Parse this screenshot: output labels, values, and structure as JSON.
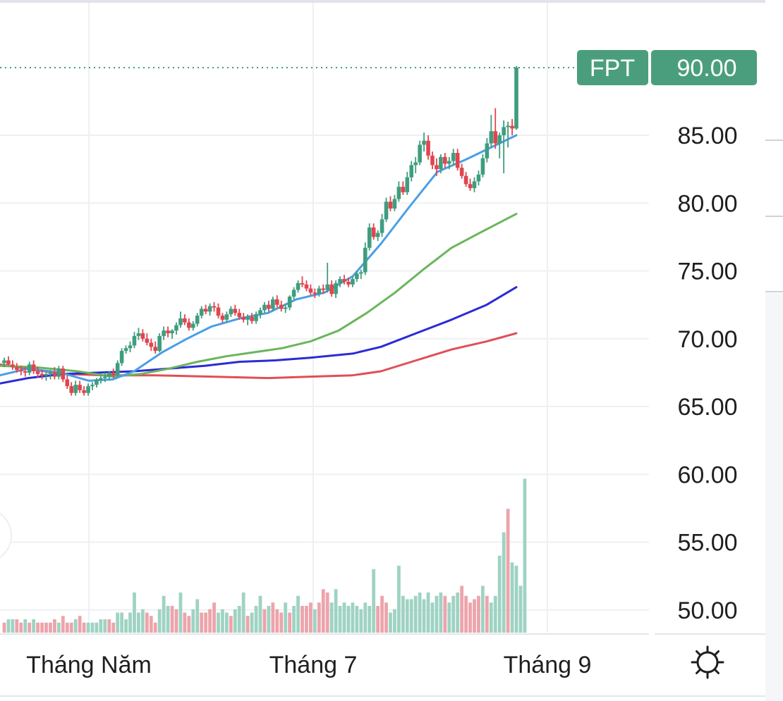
{
  "chart_data": {
    "type": "candlestick",
    "symbol": "FPT",
    "last_price": "90.00",
    "y_ticks": [
      "85.00",
      "80.00",
      "75.00",
      "70.00",
      "65.00",
      "60.00",
      "55.00",
      "50.00"
    ],
    "x_ticks": [
      "Tháng Năm",
      "Tháng 7",
      "Tháng 9"
    ],
    "ylim": [
      48.25,
      92.5
    ],
    "grid": true,
    "colors": {
      "up": "#3f9d7f",
      "down": "#e0454f",
      "volume_up": "#9fd3c3",
      "volume_down": "#eda4ab",
      "badge": "#4a9e7e",
      "ma_fast": "#4a9fe6",
      "ma_medium": "#6ab55c",
      "ma_slow": "#2b2bd6",
      "ma_long": "#e04f55"
    },
    "candles": [
      [
        68.2,
        68.6,
        67.9,
        68.4
      ],
      [
        68.4,
        68.7,
        68.0,
        68.1
      ],
      [
        68.1,
        68.4,
        67.7,
        67.9
      ],
      [
        67.9,
        68.2,
        67.5,
        67.7
      ],
      [
        67.7,
        68.0,
        67.3,
        67.6
      ],
      [
        67.6,
        67.9,
        67.2,
        67.5
      ],
      [
        67.5,
        68.3,
        67.3,
        68.1
      ],
      [
        68.1,
        68.4,
        67.4,
        67.6
      ],
      [
        67.6,
        67.9,
        67.1,
        67.4
      ],
      [
        67.4,
        67.7,
        67.0,
        67.3
      ],
      [
        67.3,
        67.6,
        66.9,
        67.4
      ],
      [
        67.4,
        67.7,
        67.0,
        67.5
      ],
      [
        67.5,
        67.9,
        67.0,
        67.2
      ],
      [
        67.2,
        68.0,
        67.0,
        67.8
      ],
      [
        67.8,
        68.0,
        66.8,
        67.0
      ],
      [
        67.0,
        67.3,
        66.3,
        66.5
      ],
      [
        66.5,
        66.8,
        65.8,
        66.0
      ],
      [
        66.0,
        66.9,
        65.8,
        66.6
      ],
      [
        66.6,
        66.9,
        66.0,
        66.2
      ],
      [
        66.2,
        66.5,
        65.8,
        66.0
      ],
      [
        66.0,
        66.7,
        65.8,
        66.5
      ],
      [
        66.5,
        66.8,
        66.2,
        66.6
      ],
      [
        66.6,
        67.1,
        66.4,
        67.0
      ],
      [
        67.0,
        67.3,
        66.7,
        67.1
      ],
      [
        67.1,
        67.5,
        66.8,
        67.2
      ],
      [
        67.2,
        67.6,
        66.9,
        67.5
      ],
      [
        67.5,
        67.8,
        67.1,
        67.3
      ],
      [
        67.3,
        68.4,
        67.2,
        68.2
      ],
      [
        68.2,
        69.3,
        68.0,
        69.1
      ],
      [
        69.1,
        69.5,
        68.9,
        69.3
      ],
      [
        69.3,
        69.8,
        69.0,
        69.5
      ],
      [
        69.5,
        70.5,
        69.3,
        70.2
      ],
      [
        70.2,
        70.8,
        69.9,
        70.4
      ],
      [
        70.4,
        70.7,
        69.8,
        70.0
      ],
      [
        70.0,
        70.4,
        69.5,
        69.7
      ],
      [
        69.7,
        70.0,
        69.1,
        69.4
      ],
      [
        69.4,
        69.8,
        68.9,
        69.1
      ],
      [
        69.1,
        70.4,
        69.0,
        70.2
      ],
      [
        70.2,
        70.9,
        69.9,
        70.6
      ],
      [
        70.6,
        70.9,
        70.1,
        70.4
      ],
      [
        70.4,
        70.7,
        70.0,
        70.6
      ],
      [
        70.6,
        71.2,
        70.3,
        71.0
      ],
      [
        71.0,
        72.0,
        70.8,
        71.5
      ],
      [
        71.5,
        71.8,
        71.0,
        71.2
      ],
      [
        71.2,
        71.5,
        70.6,
        70.8
      ],
      [
        70.8,
        71.3,
        70.6,
        71.1
      ],
      [
        71.1,
        71.9,
        70.9,
        71.7
      ],
      [
        71.7,
        72.4,
        71.5,
        72.2
      ],
      [
        72.2,
        72.5,
        71.8,
        72.0
      ],
      [
        72.0,
        72.6,
        71.7,
        72.4
      ],
      [
        72.4,
        72.7,
        72.0,
        72.3
      ],
      [
        72.3,
        72.6,
        71.5,
        71.7
      ],
      [
        71.7,
        71.9,
        71.2,
        71.4
      ],
      [
        71.4,
        72.0,
        71.2,
        71.8
      ],
      [
        71.8,
        72.4,
        71.6,
        72.2
      ],
      [
        72.2,
        72.5,
        71.7,
        71.9
      ],
      [
        71.9,
        72.2,
        71.4,
        71.6
      ],
      [
        71.6,
        71.9,
        71.2,
        71.4
      ],
      [
        71.4,
        71.8,
        71.0,
        71.6
      ],
      [
        71.6,
        71.9,
        71.1,
        71.3
      ],
      [
        71.3,
        72.0,
        71.1,
        71.8
      ],
      [
        71.8,
        72.3,
        71.5,
        72.1
      ],
      [
        72.1,
        72.7,
        71.9,
        72.5
      ],
      [
        72.5,
        72.8,
        72.0,
        72.2
      ],
      [
        72.2,
        73.1,
        72.0,
        72.9
      ],
      [
        72.9,
        73.2,
        72.3,
        72.5
      ],
      [
        72.5,
        72.8,
        72.0,
        72.2
      ],
      [
        72.2,
        72.6,
        71.9,
        72.3
      ],
      [
        72.3,
        73.2,
        72.1,
        73.1
      ],
      [
        73.1,
        73.8,
        72.9,
        73.6
      ],
      [
        73.6,
        74.3,
        73.4,
        74.1
      ],
      [
        74.1,
        74.6,
        73.8,
        74.0
      ],
      [
        74.0,
        74.3,
        73.5,
        73.7
      ],
      [
        73.7,
        74.0,
        73.2,
        73.4
      ],
      [
        73.4,
        73.7,
        73.0,
        73.3
      ],
      [
        73.3,
        73.9,
        73.1,
        73.7
      ],
      [
        73.7,
        74.0,
        73.3,
        73.6
      ],
      [
        73.6,
        75.6,
        73.4,
        74.0
      ],
      [
        74.0,
        74.3,
        73.1,
        73.3
      ],
      [
        73.3,
        74.3,
        73.0,
        74.1
      ],
      [
        74.1,
        74.6,
        73.8,
        74.4
      ],
      [
        74.4,
        74.7,
        74.0,
        74.2
      ],
      [
        74.2,
        74.5,
        73.8,
        74.0
      ],
      [
        74.0,
        74.6,
        73.8,
        74.4
      ],
      [
        74.4,
        75.0,
        74.2,
        74.8
      ],
      [
        74.8,
        75.1,
        74.4,
        74.9
      ],
      [
        74.9,
        77.1,
        74.7,
        76.7
      ],
      [
        76.7,
        78.5,
        76.5,
        78.2
      ],
      [
        78.2,
        78.5,
        77.3,
        77.5
      ],
      [
        77.5,
        78.0,
        77.2,
        77.8
      ],
      [
        77.8,
        79.2,
        77.5,
        78.8
      ],
      [
        78.8,
        80.4,
        78.6,
        80.1
      ],
      [
        80.1,
        80.5,
        79.4,
        79.6
      ],
      [
        79.6,
        80.6,
        79.4,
        80.3
      ],
      [
        80.3,
        81.6,
        80.1,
        81.2
      ],
      [
        81.2,
        81.6,
        80.6,
        80.8
      ],
      [
        80.8,
        82.3,
        80.6,
        81.9
      ],
      [
        81.9,
        83.1,
        81.6,
        82.8
      ],
      [
        82.8,
        83.4,
        82.2,
        83.0
      ],
      [
        83.0,
        84.6,
        82.8,
        84.3
      ],
      [
        84.3,
        85.2,
        83.8,
        84.6
      ],
      [
        84.6,
        85.0,
        83.2,
        83.5
      ],
      [
        83.5,
        83.8,
        82.5,
        82.8
      ],
      [
        82.8,
        83.3,
        82.0,
        82.5
      ],
      [
        82.5,
        83.6,
        82.2,
        83.4
      ],
      [
        83.4,
        83.7,
        82.6,
        82.9
      ],
      [
        82.9,
        83.4,
        82.5,
        83.1
      ],
      [
        83.1,
        84.0,
        82.8,
        83.7
      ],
      [
        83.7,
        84.0,
        82.4,
        82.6
      ],
      [
        82.6,
        82.9,
        81.8,
        82.0
      ],
      [
        82.0,
        82.3,
        81.2,
        81.4
      ],
      [
        81.4,
        81.8,
        80.9,
        81.1
      ],
      [
        81.1,
        81.9,
        80.8,
        81.6
      ],
      [
        81.6,
        82.4,
        81.3,
        82.1
      ],
      [
        82.1,
        83.6,
        81.9,
        83.3
      ],
      [
        83.3,
        84.8,
        83.0,
        84.4
      ],
      [
        84.4,
        86.5,
        84.1,
        85.3
      ],
      [
        85.3,
        87.0,
        84.0,
        84.4
      ],
      [
        84.4,
        85.2,
        83.3,
        85.0
      ],
      [
        85.0,
        86.1,
        82.2,
        85.6
      ],
      [
        85.6,
        86.0,
        84.1,
        85.7
      ],
      [
        85.7,
        86.2,
        85.0,
        85.5
      ],
      [
        85.5,
        90.1,
        85.4,
        90.0
      ]
    ],
    "volume_bars": [
      [
        3,
        1
      ],
      [
        4,
        0
      ],
      [
        4,
        0
      ],
      [
        4,
        1
      ],
      [
        3,
        1
      ],
      [
        4,
        0
      ],
      [
        3,
        1
      ],
      [
        4,
        0
      ],
      [
        3,
        1
      ],
      [
        3,
        1
      ],
      [
        3,
        1
      ],
      [
        3,
        1
      ],
      [
        4,
        1
      ],
      [
        3,
        0
      ],
      [
        5,
        1
      ],
      [
        3,
        1
      ],
      [
        3,
        1
      ],
      [
        4,
        0
      ],
      [
        5,
        1
      ],
      [
        3,
        1
      ],
      [
        3,
        0
      ],
      [
        3,
        0
      ],
      [
        3,
        0
      ],
      [
        4,
        0
      ],
      [
        4,
        0
      ],
      [
        4,
        1
      ],
      [
        3,
        1
      ],
      [
        6,
        0
      ],
      [
        6,
        0
      ],
      [
        4,
        0
      ],
      [
        6,
        0
      ],
      [
        12,
        0
      ],
      [
        6,
        0
      ],
      [
        7,
        0
      ],
      [
        6,
        1
      ],
      [
        5,
        1
      ],
      [
        3,
        1
      ],
      [
        7,
        0
      ],
      [
        11,
        0
      ],
      [
        8,
        0
      ],
      [
        8,
        1
      ],
      [
        7,
        1
      ],
      [
        12,
        0
      ],
      [
        6,
        1
      ],
      [
        5,
        1
      ],
      [
        7,
        0
      ],
      [
        10,
        0
      ],
      [
        6,
        1
      ],
      [
        6,
        1
      ],
      [
        7,
        1
      ],
      [
        9,
        1
      ],
      [
        6,
        0
      ],
      [
        7,
        0
      ],
      [
        6,
        0
      ],
      [
        5,
        1
      ],
      [
        7,
        0
      ],
      [
        8,
        0
      ],
      [
        12,
        0
      ],
      [
        5,
        1
      ],
      [
        6,
        0
      ],
      [
        8,
        0
      ],
      [
        11,
        0
      ],
      [
        7,
        1
      ],
      [
        8,
        0
      ],
      [
        9,
        1
      ],
      [
        7,
        1
      ],
      [
        6,
        1
      ],
      [
        9,
        0
      ],
      [
        6,
        1
      ],
      [
        8,
        0
      ],
      [
        11,
        0
      ],
      [
        8,
        1
      ],
      [
        8,
        1
      ],
      [
        9,
        1
      ],
      [
        7,
        0
      ],
      [
        9,
        1
      ],
      [
        13,
        1
      ],
      [
        12,
        1
      ],
      [
        9,
        0
      ],
      [
        13,
        0
      ],
      [
        8,
        0
      ],
      [
        9,
        0
      ],
      [
        8,
        0
      ],
      [
        9,
        0
      ],
      [
        8,
        0
      ],
      [
        7,
        0
      ],
      [
        9,
        0
      ],
      [
        8,
        0
      ],
      [
        19,
        0
      ],
      [
        8,
        1
      ],
      [
        11,
        1
      ],
      [
        9,
        1
      ],
      [
        6,
        0
      ],
      [
        7,
        0
      ],
      [
        20,
        0
      ],
      [
        11,
        0
      ],
      [
        10,
        0
      ],
      [
        10,
        0
      ],
      [
        11,
        0
      ],
      [
        12,
        0
      ],
      [
        10,
        0
      ],
      [
        12,
        0
      ],
      [
        9,
        0
      ],
      [
        11,
        0
      ],
      [
        12,
        0
      ],
      [
        11,
        1
      ],
      [
        9,
        0
      ],
      [
        11,
        0
      ],
      [
        12,
        0
      ],
      [
        14,
        1
      ],
      [
        11,
        1
      ],
      [
        9,
        1
      ],
      [
        10,
        1
      ],
      [
        11,
        1
      ],
      [
        14,
        0
      ],
      [
        11,
        1
      ],
      [
        9,
        0
      ],
      [
        11,
        0
      ],
      [
        23,
        0
      ],
      [
        30,
        0
      ],
      [
        37,
        1
      ],
      [
        21,
        0
      ],
      [
        20,
        0
      ],
      [
        14,
        0
      ],
      [
        46,
        0
      ]
    ],
    "moving_averages": [
      {
        "points": [
          [
            0,
            67.3
          ],
          [
            40,
            67.8
          ],
          [
            86,
            67.5
          ],
          [
            126,
            66.9
          ],
          [
            160,
            67.0
          ],
          [
            190,
            67.6
          ],
          [
            230,
            69.0
          ],
          [
            265,
            70.0
          ],
          [
            300,
            70.9
          ],
          [
            340,
            71.5
          ],
          [
            380,
            71.9
          ],
          [
            420,
            72.9
          ],
          [
            460,
            73.4
          ],
          [
            500,
            74.6
          ],
          [
            540,
            77.0
          ],
          [
            580,
            79.7
          ],
          [
            620,
            82.3
          ],
          [
            660,
            83.2
          ],
          [
            700,
            84.2
          ],
          [
            732,
            85.0
          ]
        ]
      },
      {
        "points": [
          [
            0,
            68.0
          ],
          [
            50,
            67.9
          ],
          [
            110,
            67.6
          ],
          [
            160,
            67.2
          ],
          [
            200,
            67.4
          ],
          [
            240,
            67.8
          ],
          [
            280,
            68.3
          ],
          [
            320,
            68.7
          ],
          [
            360,
            69.0
          ],
          [
            400,
            69.3
          ],
          [
            440,
            69.8
          ],
          [
            480,
            70.6
          ],
          [
            520,
            71.9
          ],
          [
            560,
            73.4
          ],
          [
            600,
            75.1
          ],
          [
            640,
            76.7
          ],
          [
            680,
            77.8
          ],
          [
            732,
            79.2
          ]
        ]
      },
      {
        "points": [
          [
            0,
            66.7
          ],
          [
            40,
            67.1
          ],
          [
            90,
            67.4
          ],
          [
            140,
            67.5
          ],
          [
            190,
            67.6
          ],
          [
            240,
            67.8
          ],
          [
            290,
            68.0
          ],
          [
            340,
            68.3
          ],
          [
            390,
            68.4
          ],
          [
            440,
            68.6
          ],
          [
            500,
            68.9
          ],
          [
            540,
            69.4
          ],
          [
            590,
            70.4
          ],
          [
            640,
            71.4
          ],
          [
            690,
            72.5
          ],
          [
            732,
            73.8
          ]
        ]
      },
      {
        "points": [
          [
            0,
            68.1
          ],
          [
            50,
            67.7
          ],
          [
            90,
            67.4
          ],
          [
            150,
            67.3
          ],
          [
            220,
            67.3
          ],
          [
            300,
            67.2
          ],
          [
            380,
            67.1
          ],
          [
            440,
            67.2
          ],
          [
            500,
            67.3
          ],
          [
            540,
            67.6
          ],
          [
            590,
            68.4
          ],
          [
            640,
            69.2
          ],
          [
            690,
            69.8
          ],
          [
            732,
            70.4
          ]
        ]
      }
    ]
  }
}
